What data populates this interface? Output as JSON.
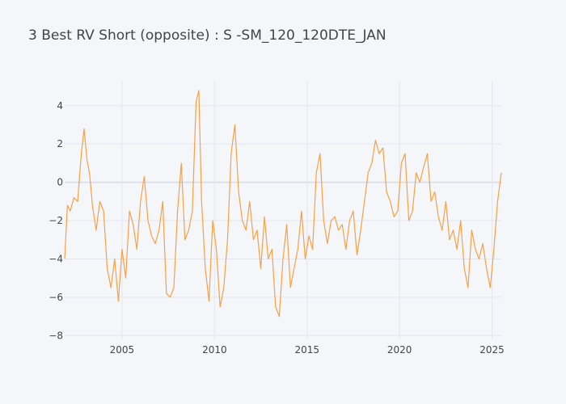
{
  "title": "3 Best RV Short (opposite) : S -SM_120_120DTE_JAN",
  "colors": {
    "background": "#f5f6fa",
    "grid": "#e4e6ee",
    "series": "#f7a046",
    "text": "#444444"
  },
  "chart_data": {
    "type": "line",
    "title": "3 Best RV Short (opposite) : S -SM_120_120DTE_JAN",
    "xlabel": "",
    "ylabel": "",
    "xlim": [
      2001.9,
      2025.5
    ],
    "ylim": [
      -8.2,
      5.3
    ],
    "grid": true,
    "legend": "none",
    "x_ticks": [
      2005,
      2010,
      2015,
      2020,
      2025
    ],
    "x_tick_labels": [
      "2005",
      "2010",
      "2015",
      "2020",
      "2025"
    ],
    "y_ticks": [
      4,
      2,
      0,
      -2,
      -4,
      -6,
      -8
    ],
    "y_tick_labels": [
      "4",
      "2",
      "0",
      "−2",
      "−4",
      "−6",
      "−8"
    ],
    "series": [
      {
        "color": "#f7a046",
        "x": [
          2001.9,
          2002.05,
          2002.2,
          2002.4,
          2002.6,
          2002.8,
          2002.95,
          2003.1,
          2003.25,
          2003.4,
          2003.6,
          2003.8,
          2004.0,
          2004.2,
          2004.4,
          2004.6,
          2004.8,
          2005.0,
          2005.2,
          2005.4,
          2005.6,
          2005.8,
          2006.0,
          2006.2,
          2006.4,
          2006.6,
          2006.8,
          2007.0,
          2007.2,
          2007.4,
          2007.6,
          2007.8,
          2008.0,
          2008.2,
          2008.4,
          2008.6,
          2008.8,
          2009.0,
          2009.15,
          2009.3,
          2009.5,
          2009.7,
          2009.9,
          2010.1,
          2010.3,
          2010.5,
          2010.7,
          2010.9,
          2011.1,
          2011.3,
          2011.5,
          2011.7,
          2011.9,
          2012.1,
          2012.3,
          2012.5,
          2012.7,
          2012.9,
          2013.1,
          2013.3,
          2013.5,
          2013.7,
          2013.9,
          2014.1,
          2014.3,
          2014.5,
          2014.7,
          2014.9,
          2015.1,
          2015.3,
          2015.5,
          2015.7,
          2015.9,
          2016.1,
          2016.3,
          2016.5,
          2016.7,
          2016.9,
          2017.1,
          2017.3,
          2017.5,
          2017.7,
          2017.9,
          2018.1,
          2018.3,
          2018.5,
          2018.7,
          2018.9,
          2019.1,
          2019.3,
          2019.5,
          2019.7,
          2019.9,
          2020.1,
          2020.3,
          2020.5,
          2020.7,
          2020.9,
          2021.1,
          2021.3,
          2021.5,
          2021.7,
          2021.9,
          2022.1,
          2022.3,
          2022.5,
          2022.7,
          2022.9,
          2023.1,
          2023.3,
          2023.5,
          2023.7,
          2023.9,
          2024.1,
          2024.3,
          2024.5,
          2024.7,
          2024.9,
          2025.1,
          2025.3,
          2025.5
        ],
        "y": [
          -4.0,
          -1.2,
          -1.5,
          -0.8,
          -1.0,
          1.5,
          2.8,
          1.2,
          0.4,
          -1.2,
          -2.5,
          -1.0,
          -1.5,
          -4.5,
          -5.5,
          -4.0,
          -6.2,
          -3.5,
          -5.0,
          -1.5,
          -2.2,
          -3.5,
          -1.0,
          0.3,
          -2.0,
          -2.8,
          -3.2,
          -2.5,
          -1.0,
          -5.8,
          -6.0,
          -5.5,
          -1.5,
          1.0,
          -3.0,
          -2.5,
          -1.5,
          4.2,
          4.8,
          -1.0,
          -4.5,
          -6.2,
          -2.0,
          -3.5,
          -6.5,
          -5.5,
          -3.0,
          1.5,
          3.0,
          -0.5,
          -2.0,
          -2.5,
          -1.0,
          -3.0,
          -2.5,
          -4.5,
          -1.8,
          -4.0,
          -3.5,
          -6.5,
          -7.0,
          -4.0,
          -2.2,
          -5.5,
          -4.5,
          -3.5,
          -1.5,
          -4.0,
          -2.8,
          -3.5,
          0.5,
          1.5,
          -2.0,
          -3.2,
          -2.0,
          -1.8,
          -2.5,
          -2.2,
          -3.5,
          -2.0,
          -1.5,
          -3.8,
          -2.5,
          -1.0,
          0.5,
          1.0,
          2.2,
          1.5,
          1.8,
          -0.5,
          -1.0,
          -1.8,
          -1.5,
          1.0,
          1.5,
          -2.0,
          -1.5,
          0.5,
          0.0,
          0.8,
          1.5,
          -1.0,
          -0.5,
          -1.8,
          -2.5,
          -1.0,
          -3.0,
          -2.5,
          -3.5,
          -2.0,
          -4.5,
          -5.5,
          -2.5,
          -3.5,
          -4.0,
          -3.2,
          -4.5,
          -5.5,
          -3.5,
          -1.0,
          0.5
        ]
      }
    ]
  }
}
